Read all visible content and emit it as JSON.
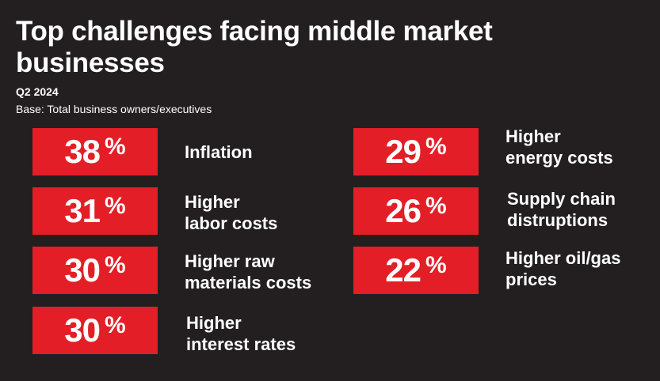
{
  "title": "Top challenges facing middle market businesses",
  "subtitle": "Q2 2024",
  "base": "Base: Total business owners/executives",
  "percent_sign": "%",
  "chart_data": {
    "type": "table",
    "title": "Top challenges facing middle market businesses",
    "categories": [
      "Inflation",
      "Higher\nlabor costs",
      "Higher raw\nmaterials costs",
      "Higher\ninterest rates",
      "Higher\nenergy costs",
      "Supply chain\ndistruptions",
      "Higher oil/gas\nprices"
    ],
    "values": [
      38,
      31,
      30,
      30,
      29,
      26,
      22
    ],
    "unit": "%",
    "colors": {
      "box": "#e31e26",
      "background": "#231f20",
      "text": "#ffffff"
    }
  }
}
